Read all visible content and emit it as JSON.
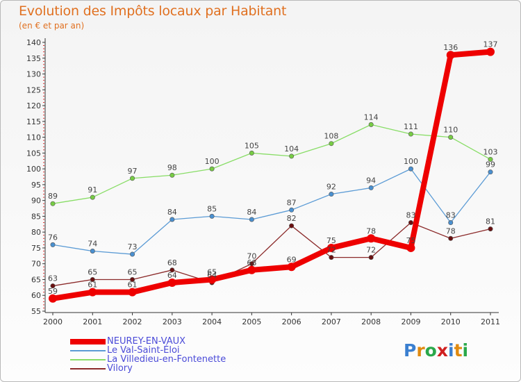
{
  "header": {
    "title": "Evolution des Impôts locaux par Habitant",
    "subtitle": "(en € et par an)"
  },
  "chart_data": {
    "type": "line",
    "title": "Evolution des Impôts locaux par Habitant",
    "subtitle": "(en € et par an)",
    "xlabel": "",
    "ylabel": "",
    "categories": [
      "2000",
      "2001",
      "2002",
      "2003",
      "2004",
      "2005",
      "2006",
      "2007",
      "2008",
      "2009",
      "2010",
      "2011"
    ],
    "ylim": [
      55,
      140
    ],
    "yticks": [
      55,
      60,
      65,
      70,
      75,
      80,
      85,
      90,
      95,
      100,
      105,
      110,
      115,
      120,
      125,
      130,
      135,
      140
    ],
    "grid": false,
    "legend_position": "bottom-left",
    "series": [
      {
        "name": "NEUREY-EN-VAUX",
        "color": "#ee0000",
        "marker_color": "#ee0000",
        "emphasis": "thick",
        "values": [
          59,
          61,
          61,
          64,
          65,
          68,
          69,
          75,
          78,
          75,
          136,
          137
        ]
      },
      {
        "name": "Le Val-Saint-Éloi",
        "color": "#5b9bd5",
        "marker_color": "#4a90d0",
        "emphasis": "normal",
        "values": [
          76,
          74,
          73,
          84,
          85,
          84,
          87,
          92,
          94,
          100,
          83,
          99
        ]
      },
      {
        "name": "La Villedieu-en-Fontenette",
        "color": "#88dd66",
        "marker_color": "#77cc44",
        "emphasis": "normal",
        "values": [
          89,
          91,
          97,
          98,
          100,
          105,
          104,
          108,
          114,
          111,
          110,
          103
        ]
      },
      {
        "name": "Vilory",
        "color": "#8b2a2a",
        "marker_color": "#6a1010",
        "emphasis": "normal",
        "values": [
          63,
          65,
          65,
          68,
          64,
          70,
          82,
          72,
          72,
          83,
          78,
          81
        ]
      }
    ]
  },
  "logo": {
    "letters": [
      "P",
      "r",
      "o",
      "x",
      "i",
      "t",
      "i"
    ],
    "colors": [
      "#3a7fd0",
      "#e08a10",
      "#2aa84a",
      "#d02020",
      "#3a7fd0",
      "#e08a10",
      "#2aa84a"
    ]
  }
}
